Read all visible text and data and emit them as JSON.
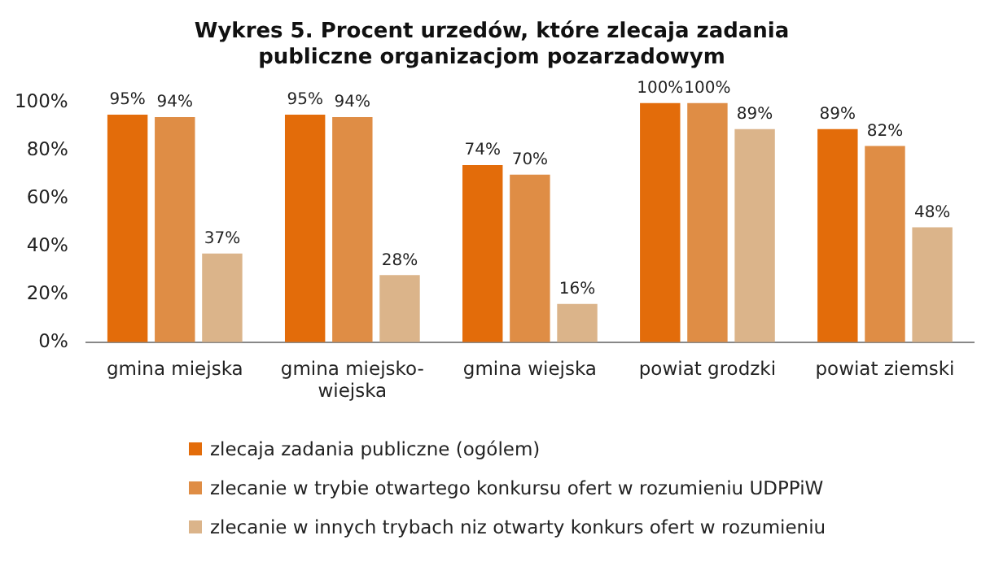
{
  "chart_data": {
    "type": "bar",
    "title": "Wykres 5. Procent urzedów, które zlecaja zadania publiczne organizacjom pozarzadowym",
    "categories": [
      "gmina miejska",
      "gmina miejsko-wiejska",
      "gmina wiejska",
      "powiat grodzki",
      "powiat ziemski"
    ],
    "series": [
      {
        "name": "zlecaja zadania publiczne (ogólem)",
        "color": "#e36c0a",
        "values": [
          95,
          95,
          74,
          100,
          89
        ],
        "value_labels": [
          "95%",
          "95%",
          "74%",
          "100%",
          "89%"
        ]
      },
      {
        "name": "zlecanie w trybie otwartego konkursu ofert w rozumieniu UDPPiW",
        "color": "#df8d45",
        "values": [
          94,
          94,
          70,
          100,
          82
        ],
        "value_labels": [
          "94%",
          "94%",
          "70%",
          "100%",
          "82%"
        ]
      },
      {
        "name": "zlecanie w innych trybach niz otwarty konkurs ofert w rozumieniu",
        "color": "#dbb48a",
        "values": [
          37,
          28,
          16,
          89,
          48
        ],
        "value_labels": [
          "37%",
          "28%",
          "16%",
          "89%",
          "48%"
        ]
      }
    ],
    "ylim": [
      0,
      100
    ],
    "yticks": [
      {
        "value": 0,
        "label": "0%"
      },
      {
        "value": 20,
        "label": "20%"
      },
      {
        "value": 40,
        "label": "40%"
      },
      {
        "value": 60,
        "label": "60%"
      },
      {
        "value": 80,
        "label": "80%"
      },
      {
        "value": 100,
        "label": "100%"
      }
    ],
    "grid": false,
    "legend": "bottom"
  }
}
